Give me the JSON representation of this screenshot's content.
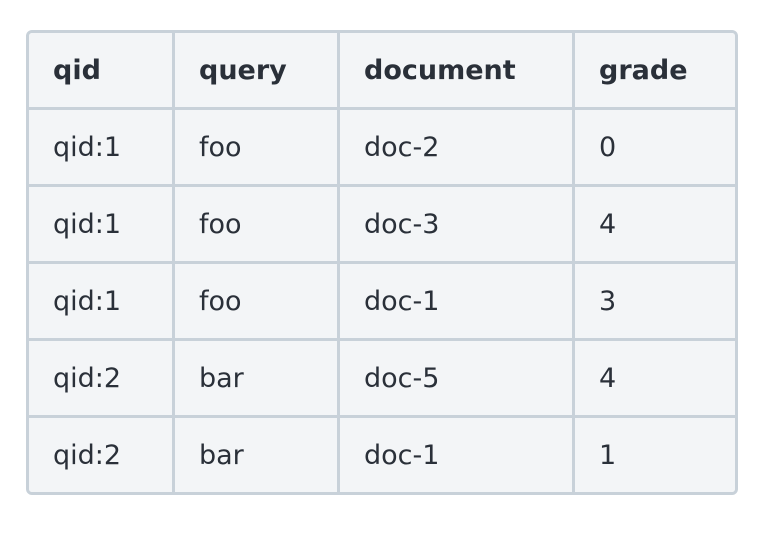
{
  "table": {
    "headers": [
      "qid",
      "query",
      "document",
      "grade"
    ],
    "rows": [
      [
        "qid:1",
        "foo",
        "doc-2",
        "0"
      ],
      [
        "qid:1",
        "foo",
        "doc-3",
        "4"
      ],
      [
        "qid:1",
        "foo",
        "doc-1",
        "3"
      ],
      [
        "qid:2",
        "bar",
        "doc-5",
        "4"
      ],
      [
        "qid:2",
        "bar",
        "doc-1",
        "1"
      ]
    ]
  },
  "colors": {
    "border": "#c8d1d9",
    "background": "#f3f5f7",
    "text": "#2a3039"
  }
}
